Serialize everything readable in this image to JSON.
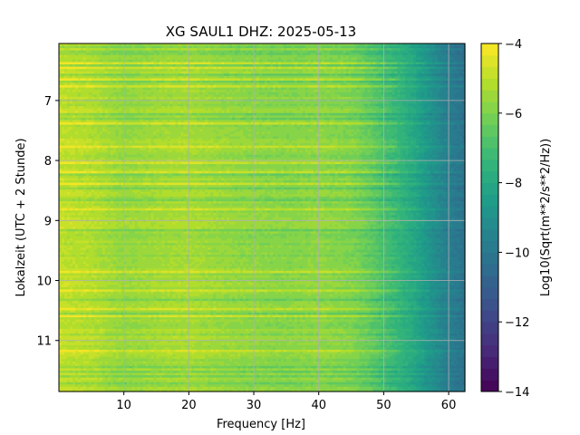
{
  "chart_data": {
    "type": "heatmap",
    "title": "XG SAUL1  DHZ: 2025-05-13",
    "xlabel": "Frequency [Hz]",
    "ylabel": "Lokalzeit (UTC + 2 Stunde)",
    "colorbar_label": "Log10(Sqrt(m**2/s**2/Hz))",
    "xlim": [
      0,
      62.5
    ],
    "ylim": [
      11.85,
      6.05
    ],
    "y_inverted": true,
    "x_ticks": [
      10,
      20,
      30,
      40,
      50,
      60
    ],
    "y_ticks": [
      7,
      8,
      9,
      10,
      11
    ],
    "colorbar_range": [
      -14,
      -4
    ],
    "colorbar_ticks": [
      -4,
      -6,
      -8,
      -10,
      -12,
      -14
    ],
    "colorbar_tick_labels": [
      "−4",
      "−6",
      "−8",
      "−10",
      "−12",
      "−14"
    ],
    "colorbar_levels": 30,
    "colormap": "viridis",
    "grid": true,
    "spectrum_profile": {
      "frequency_hz": [
        0,
        5,
        10,
        15,
        20,
        25,
        30,
        35,
        40,
        45,
        48,
        50,
        52,
        55,
        57,
        60,
        62.5
      ],
      "log_amplitude": [
        -4.9,
        -5.1,
        -5.6,
        -5.4,
        -5.3,
        -5.55,
        -5.7,
        -5.8,
        -5.7,
        -5.9,
        -6.4,
        -6.9,
        -7.3,
        -8.1,
        -8.8,
        -9.7,
        -10.2
      ]
    }
  }
}
